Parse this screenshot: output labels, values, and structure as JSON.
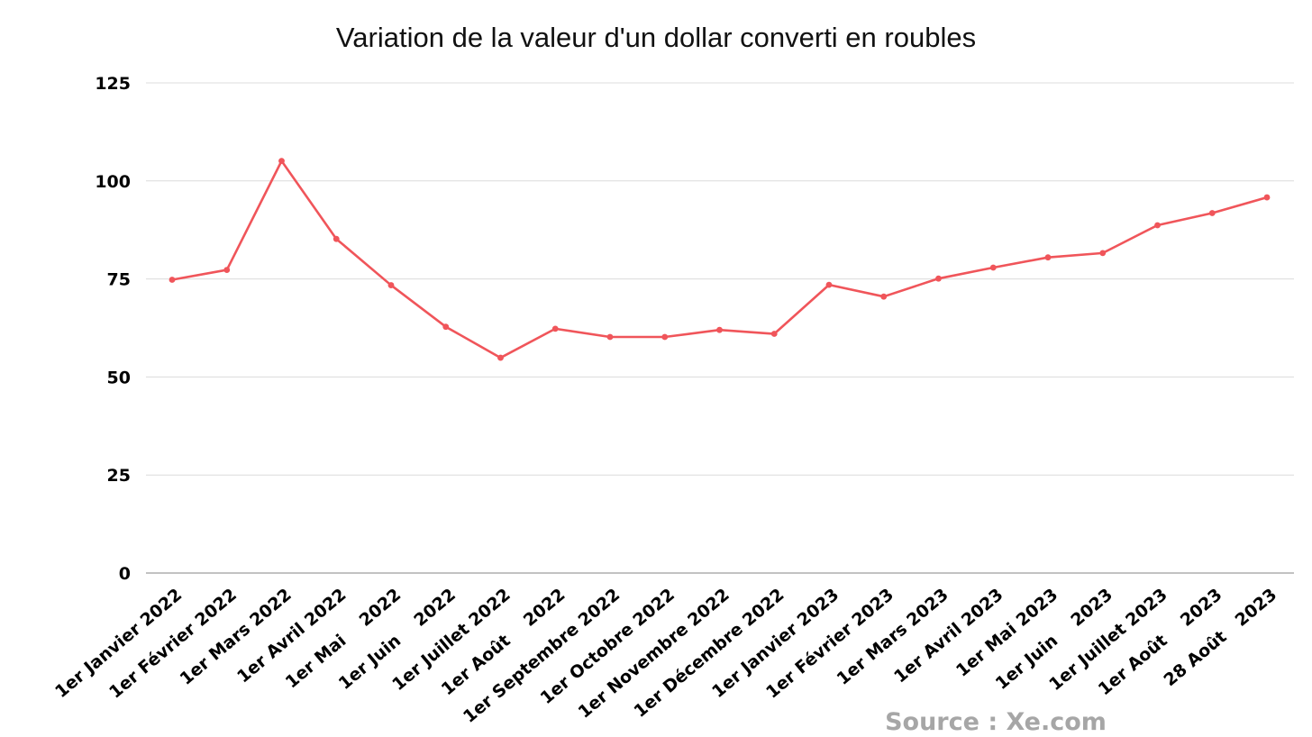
{
  "chart_data": {
    "type": "line",
    "title": "Variation de la valeur d'un dollar converti en roubles",
    "xlabel": "",
    "ylabel": "",
    "ylim": [
      0,
      125
    ],
    "yticks": [
      "0",
      "25",
      "50",
      "75",
      "100",
      "125"
    ],
    "grid": true,
    "legend": "none",
    "categories": [
      "1er Janvier 2022",
      "1er Février 2022",
      "1er Mars 2022",
      "1er Avril 2022",
      "1er Mai    2022",
      "1er Juin    2022",
      "1er Juillet 2022",
      "1er Août    2022",
      "1er Septembre 2022",
      "1er Octobre 2022",
      "1er Novembre 2022",
      "1er Décembre 2022",
      "1er Janvier 2023",
      "1er Février 2023",
      "1er Mars 2023",
      "1er Avril 2023",
      "1er Mai 2023",
      "1er Juin    2023",
      "1er Juillet 2023",
      "1er Août    2023",
      "28 Août   2023"
    ],
    "series": [
      {
        "color": "#f0555a",
        "values": [
          74.8,
          77.3,
          105.1,
          85.2,
          73.4,
          62.8,
          54.9,
          62.3,
          60.2,
          60.2,
          62.0,
          61.0,
          73.5,
          70.5,
          75.1,
          77.9,
          80.5,
          81.6,
          88.7,
          91.8,
          95.8
        ]
      }
    ]
  },
  "source": "Source : Xe.com"
}
